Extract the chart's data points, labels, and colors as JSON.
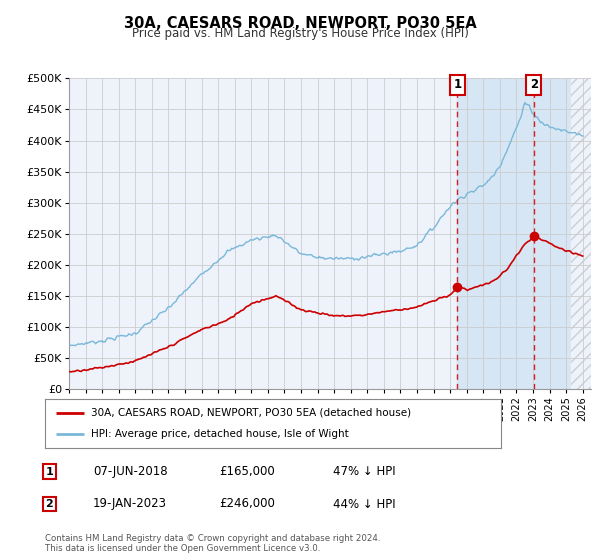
{
  "title": "30A, CAESARS ROAD, NEWPORT, PO30 5EA",
  "subtitle": "Price paid vs. HM Land Registry's House Price Index (HPI)",
  "footer": "Contains HM Land Registry data © Crown copyright and database right 2024.\nThis data is licensed under the Open Government Licence v3.0.",
  "legend_line1": "30A, CAESARS ROAD, NEWPORT, PO30 5EA (detached house)",
  "legend_line2": "HPI: Average price, detached house, Isle of Wight",
  "sale1_label": "1",
  "sale1_date": "07-JUN-2018",
  "sale1_price": "£165,000",
  "sale1_hpi": "47% ↓ HPI",
  "sale2_label": "2",
  "sale2_date": "19-JAN-2023",
  "sale2_price": "£246,000",
  "sale2_hpi": "44% ↓ HPI",
  "hpi_color": "#7ab8d9",
  "price_color": "#cc0000",
  "dashed_line_color": "#cc0000",
  "background_plot": "#eef2fa",
  "background_fig": "#ffffff",
  "grid_color": "#cccccc",
  "ylim": [
    0,
    500000
  ],
  "yticks": [
    0,
    50000,
    100000,
    150000,
    200000,
    250000,
    300000,
    350000,
    400000,
    450000,
    500000
  ],
  "xlim_start": 1995.0,
  "xlim_end": 2026.5,
  "sale1_x": 2018.44,
  "sale1_y": 165000,
  "sale2_x": 2023.05,
  "sale2_y": 246000,
  "shade_start": 2018.44,
  "shade_end": 2025.3,
  "hatch_start": 2025.3,
  "hatch_end": 2026.5
}
